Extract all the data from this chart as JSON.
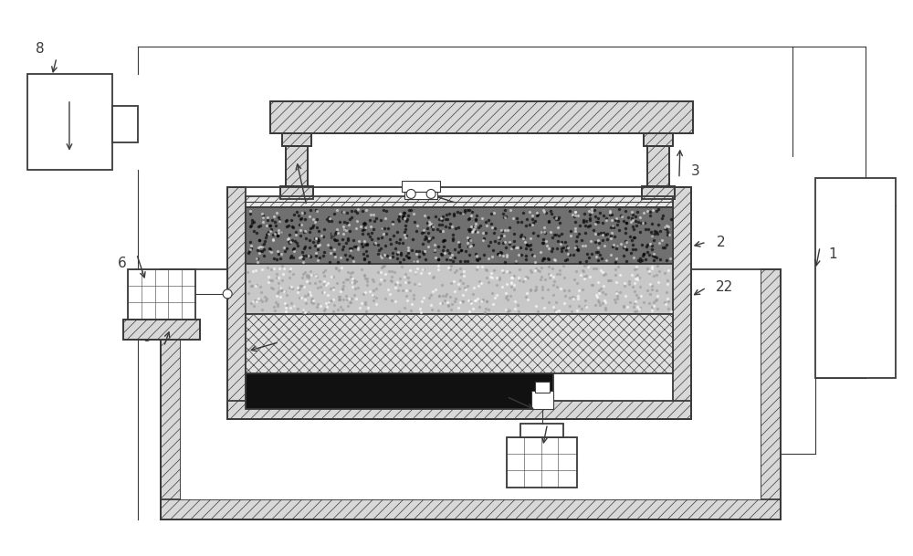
{
  "bg_color": "#ffffff",
  "lc": "#3a3a3a",
  "figsize": [
    10.0,
    6.09
  ],
  "dpi": 100,
  "lw": 1.3,
  "lw_thin": 0.8,
  "hatch_lw": 0.5
}
